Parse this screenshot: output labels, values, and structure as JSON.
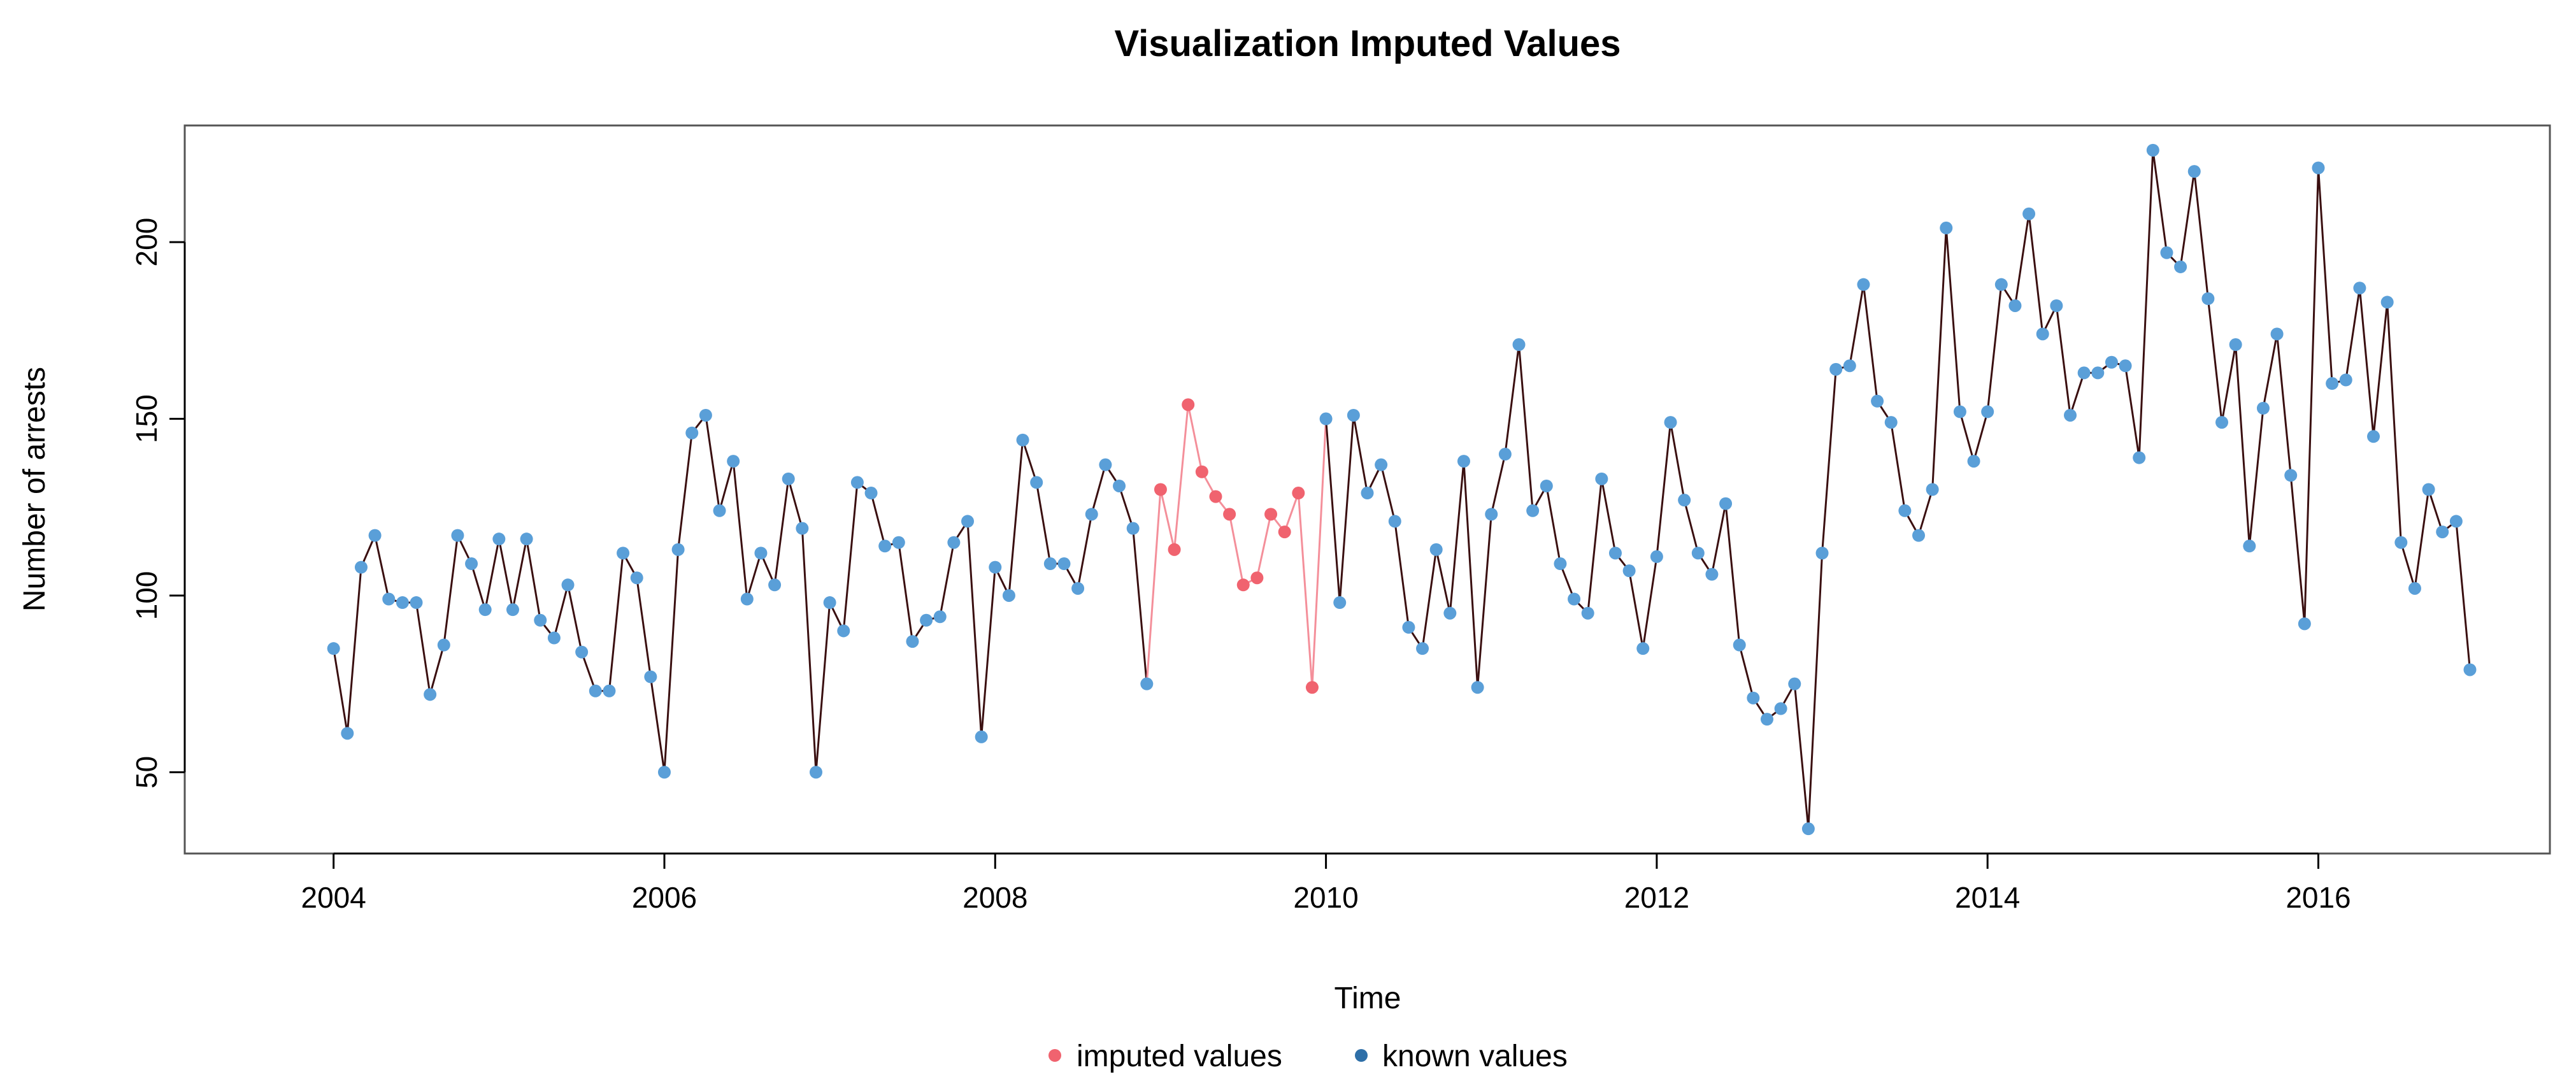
{
  "chart_data": {
    "type": "line",
    "title": "Visualization Imputed Values",
    "xlabel": "Time",
    "ylabel": "Number of arrests",
    "xlim": [
      2003.1,
      2017.4
    ],
    "ylim": [
      27,
      233
    ],
    "x_ticks": [
      2004,
      2006,
      2008,
      2010,
      2012,
      2014,
      2016
    ],
    "x_tick_labels": [
      "2004",
      "2006",
      "2008",
      "2010",
      "2012",
      "2014",
      "2016"
    ],
    "y_ticks": [
      50,
      100,
      150,
      200
    ],
    "y_tick_labels": [
      "50",
      "100",
      "150",
      "200"
    ],
    "start": 2004,
    "frequency": 12,
    "colors": {
      "line": "#3a0f10",
      "imputed_line": "#f48f9a",
      "imputed_point": "#f0636f",
      "known_point": "#5a9fd8",
      "legend_known_point": "#2e6fa8",
      "axis": "#000000",
      "box": "#555555"
    },
    "legend": {
      "position": "bottom-center",
      "items": [
        {
          "label": "imputed values",
          "color": "#f0636f"
        },
        {
          "label": "known values",
          "color": "#2e6fa8"
        }
      ]
    },
    "series": [
      {
        "name": "arrests",
        "values": [
          85,
          61,
          108,
          117,
          99,
          98,
          98,
          72,
          86,
          117,
          109,
          96,
          116,
          96,
          116,
          93,
          88,
          103,
          84,
          73,
          73,
          112,
          105,
          77,
          50,
          113,
          146,
          151,
          124,
          138,
          99,
          112,
          103,
          133,
          119,
          50,
          98,
          90,
          132,
          129,
          114,
          115,
          87,
          93,
          94,
          115,
          121,
          60,
          108,
          100,
          144,
          132,
          109,
          109,
          102,
          123,
          137,
          131,
          119,
          75,
          130,
          113,
          154,
          135,
          128,
          123,
          103,
          105,
          123,
          118,
          129,
          74,
          150,
          98,
          151,
          129,
          137,
          121,
          91,
          85,
          113,
          95,
          138,
          74,
          123,
          140,
          171,
          124,
          131,
          109,
          99,
          95,
          133,
          112,
          107,
          85,
          111,
          149,
          127,
          112,
          106,
          126,
          86,
          71,
          65,
          68,
          75,
          34,
          112,
          164,
          165,
          188,
          155,
          149,
          124,
          117,
          130,
          204,
          152,
          138,
          152,
          188,
          182,
          208,
          174,
          182,
          151,
          163,
          163,
          166,
          165,
          139,
          226,
          197,
          193,
          220,
          184,
          149,
          171,
          114,
          153,
          174,
          134,
          92,
          221,
          160,
          161,
          187,
          145,
          183,
          115,
          102,
          130,
          118,
          121,
          79
        ],
        "imputed_range": [
          60,
          71
        ]
      }
    ]
  }
}
